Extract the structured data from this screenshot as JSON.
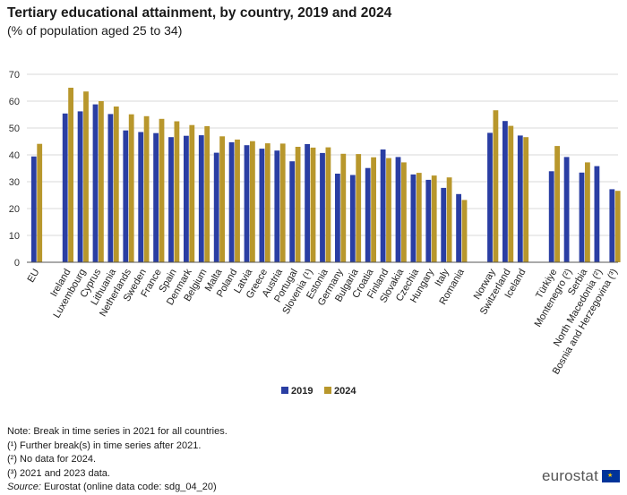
{
  "header": {
    "title": "Tertiary educational attainment, by country, 2019 and 2024",
    "subtitle": "(% of population  aged  25 to 34)"
  },
  "chart_data": {
    "type": "bar",
    "title": "Tertiary educational attainment, by country, 2019 and 2024",
    "subtitle": "(% of population aged 25 to 34)",
    "xlabel": "",
    "ylabel": "",
    "ylim": [
      0,
      70
    ],
    "yticks": [
      0,
      10,
      20,
      30,
      40,
      50,
      60,
      70
    ],
    "grid": true,
    "legend_position": "bottom-center",
    "groups": [
      [
        "EU"
      ],
      [
        "Ireland",
        "Luxembourg",
        "Cyprus",
        "Lithuania",
        "Netherlands",
        "Sweden",
        "France",
        "Spain",
        "Denmark",
        "Belgium",
        "Malta",
        "Poland",
        "Latvia",
        "Greece",
        "Austria",
        "Portugal",
        "Slovenia (¹)",
        "Estonia",
        "Germany",
        "Bulgaria",
        "Croatia",
        "Finland",
        "Slovakia",
        "Czechia",
        "Hungary",
        "Italy",
        "Romania"
      ],
      [
        "Norway",
        "Switzerland",
        "Iceland"
      ],
      [
        "Türkiye",
        "Montenegro (²)",
        "Serbia",
        "North Macedonia (²)",
        "Bosnia and Herzegovina (³)"
      ]
    ],
    "categories": [
      "EU",
      "Ireland",
      "Luxembourg",
      "Cyprus",
      "Lithuania",
      "Netherlands",
      "Sweden",
      "France",
      "Spain",
      "Denmark",
      "Belgium",
      "Malta",
      "Poland",
      "Latvia",
      "Greece",
      "Austria",
      "Portugal",
      "Slovenia (¹)",
      "Estonia",
      "Germany",
      "Bulgaria",
      "Croatia",
      "Finland",
      "Slovakia",
      "Czechia",
      "Hungary",
      "Italy",
      "Romania",
      "Norway",
      "Switzerland",
      "Iceland",
      "Türkiye",
      "Montenegro (²)",
      "Serbia",
      "North Macedonia (²)",
      "Bosnia and Herzegovina (³)"
    ],
    "series": [
      {
        "name": "2019",
        "color": "#2a3ea3",
        "values": [
          39.4,
          55.4,
          56.2,
          58.8,
          55.2,
          49.1,
          48.5,
          48.1,
          46.6,
          47.1,
          47.3,
          40.8,
          44.7,
          43.6,
          42.3,
          41.6,
          37.6,
          44.0,
          40.7,
          33.0,
          32.5,
          35.1,
          42.0,
          39.2,
          32.7,
          30.7,
          27.7,
          25.4,
          48.2,
          52.6,
          47.2,
          33.9,
          39.2,
          33.4,
          35.8,
          27.2
        ]
      },
      {
        "name": "2024",
        "color": "#b8972c",
        "values": [
          44.1,
          65.0,
          63.6,
          60.0,
          58.0,
          55.1,
          54.4,
          53.4,
          52.5,
          51.1,
          50.7,
          46.9,
          45.7,
          45.1,
          44.3,
          44.2,
          43.0,
          42.7,
          42.8,
          40.4,
          40.3,
          39.1,
          38.8,
          37.2,
          33.3,
          32.3,
          31.6,
          23.2,
          56.6,
          50.8,
          46.6,
          43.3,
          null,
          37.2,
          null,
          26.6
        ]
      }
    ]
  },
  "legend": [
    {
      "label": "2019",
      "color": "#2a3ea3"
    },
    {
      "label": "2024",
      "color": "#b8972c"
    }
  ],
  "notes": {
    "line1": "Note: Break in time series in 2021 for all countries.",
    "line2": "(¹) Further break(s) in time series after 2021.",
    "line3": "(²) No data for 2024.",
    "line4": "(³) 2021 and 2023 data.",
    "source_label": "Source:",
    "source_text": " Eurostat (online data code: sdg_04_20)"
  },
  "logo": {
    "text": "eurostat",
    "flag_symbol": "★"
  }
}
